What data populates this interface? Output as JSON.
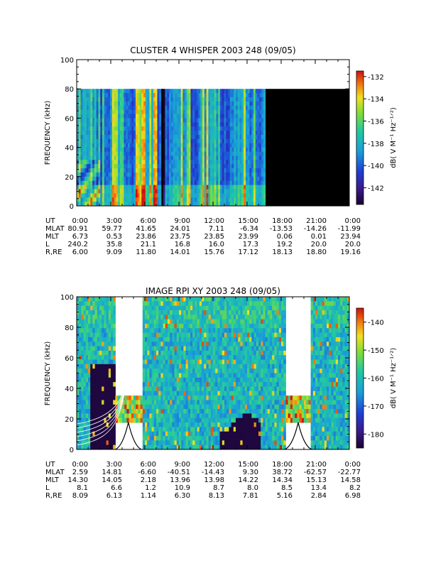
{
  "chart_data": [
    {
      "type": "heatmap",
      "title": "CLUSTER 4 WHISPER 2003 248 (09/05)",
      "ylabel": "FREQUENCY (kHz)",
      "ylim": [
        0,
        100
      ],
      "yticks": [
        "0",
        "20",
        "40",
        "60",
        "80",
        "100"
      ],
      "x_ticks": [
        "0:00",
        "3:00",
        "6:00",
        "9:00",
        "12:00",
        "15:00",
        "18:00",
        "21:00",
        "0:00"
      ],
      "data_top_khz": 80,
      "data_end_hour": 16.6,
      "colorbar": {
        "label": "dB( V M⁻¹ Hz⁻¹ᐟ²)",
        "range": [
          -143.5,
          -131.5
        ],
        "ticks": [
          "-132",
          "-134",
          "-136",
          "-138",
          "-140",
          "-142"
        ]
      },
      "ephemeris": [
        {
          "label": "UT",
          "values": [
            "0:00",
            "3:00",
            "6:00",
            "9:00",
            "12:00",
            "15:00",
            "18:00",
            "21:00",
            "0:00"
          ]
        },
        {
          "label": "MLAT",
          "values": [
            "80.91",
            "59.77",
            "41.65",
            "24.01",
            "7.11",
            "-6.34",
            "-13.53",
            "-14.26",
            "-11.99"
          ]
        },
        {
          "label": "MLT",
          "values": [
            "6.73",
            "0.53",
            "23.86",
            "23.75",
            "23.85",
            "23.99",
            "0.06",
            "0.01",
            "23.94"
          ]
        },
        {
          "label": "L",
          "values": [
            "240.2",
            "35.8",
            "21.1",
            "16.8",
            "16.0",
            "17.3",
            "19.2",
            "20.0",
            "20.0"
          ]
        },
        {
          "label": "R,RE",
          "values": [
            "6.00",
            "9.09",
            "11.80",
            "14.01",
            "15.76",
            "17.12",
            "18.13",
            "18.80",
            "19.16"
          ]
        }
      ]
    },
    {
      "type": "heatmap",
      "title": "IMAGE RPI XY 2003 248 (09/05)",
      "ylabel": "FREQUENCY (kHz)",
      "ylim": [
        0,
        100
      ],
      "yticks": [
        "0",
        "20",
        "40",
        "60",
        "80",
        "100"
      ],
      "x_ticks": [
        "0:00",
        "3:00",
        "6:00",
        "9:00",
        "12:00",
        "15:00",
        "18:00",
        "21:00",
        "0:00"
      ],
      "gaps_hours": [
        [
          3.4,
          5.7
        ],
        [
          18.3,
          20.7
        ]
      ],
      "colorbar": {
        "label": "dB( V M⁻¹ Hz⁻¹ᐟ²)",
        "range": [
          -185,
          -135
        ],
        "ticks": [
          "-140",
          "-150",
          "-160",
          "-170",
          "-180"
        ]
      },
      "ephemeris": [
        {
          "label": "UT",
          "values": [
            "0:00",
            "3:00",
            "6:00",
            "9:00",
            "12:00",
            "15:00",
            "18:00",
            "21:00",
            "0:00"
          ]
        },
        {
          "label": "MLAT",
          "values": [
            "2.59",
            "14.81",
            "-6.60",
            "-40.51",
            "-14.43",
            "9.30",
            "38.72",
            "-62.57",
            "-22.77"
          ]
        },
        {
          "label": "MLT",
          "values": [
            "14.30",
            "14.05",
            "2.18",
            "13.96",
            "13.98",
            "14.22",
            "14.34",
            "15.13",
            "14.58"
          ]
        },
        {
          "label": "L",
          "values": [
            "8.1",
            "6.6",
            "1.2",
            "10.9",
            "8.7",
            "8.0",
            "8.5",
            "13.4",
            "8.2"
          ]
        },
        {
          "label": "R,RE",
          "values": [
            "8.09",
            "6.13",
            "1.14",
            "6.30",
            "8.13",
            "7.81",
            "5.16",
            "2.84",
            "6.98"
          ]
        }
      ]
    }
  ]
}
